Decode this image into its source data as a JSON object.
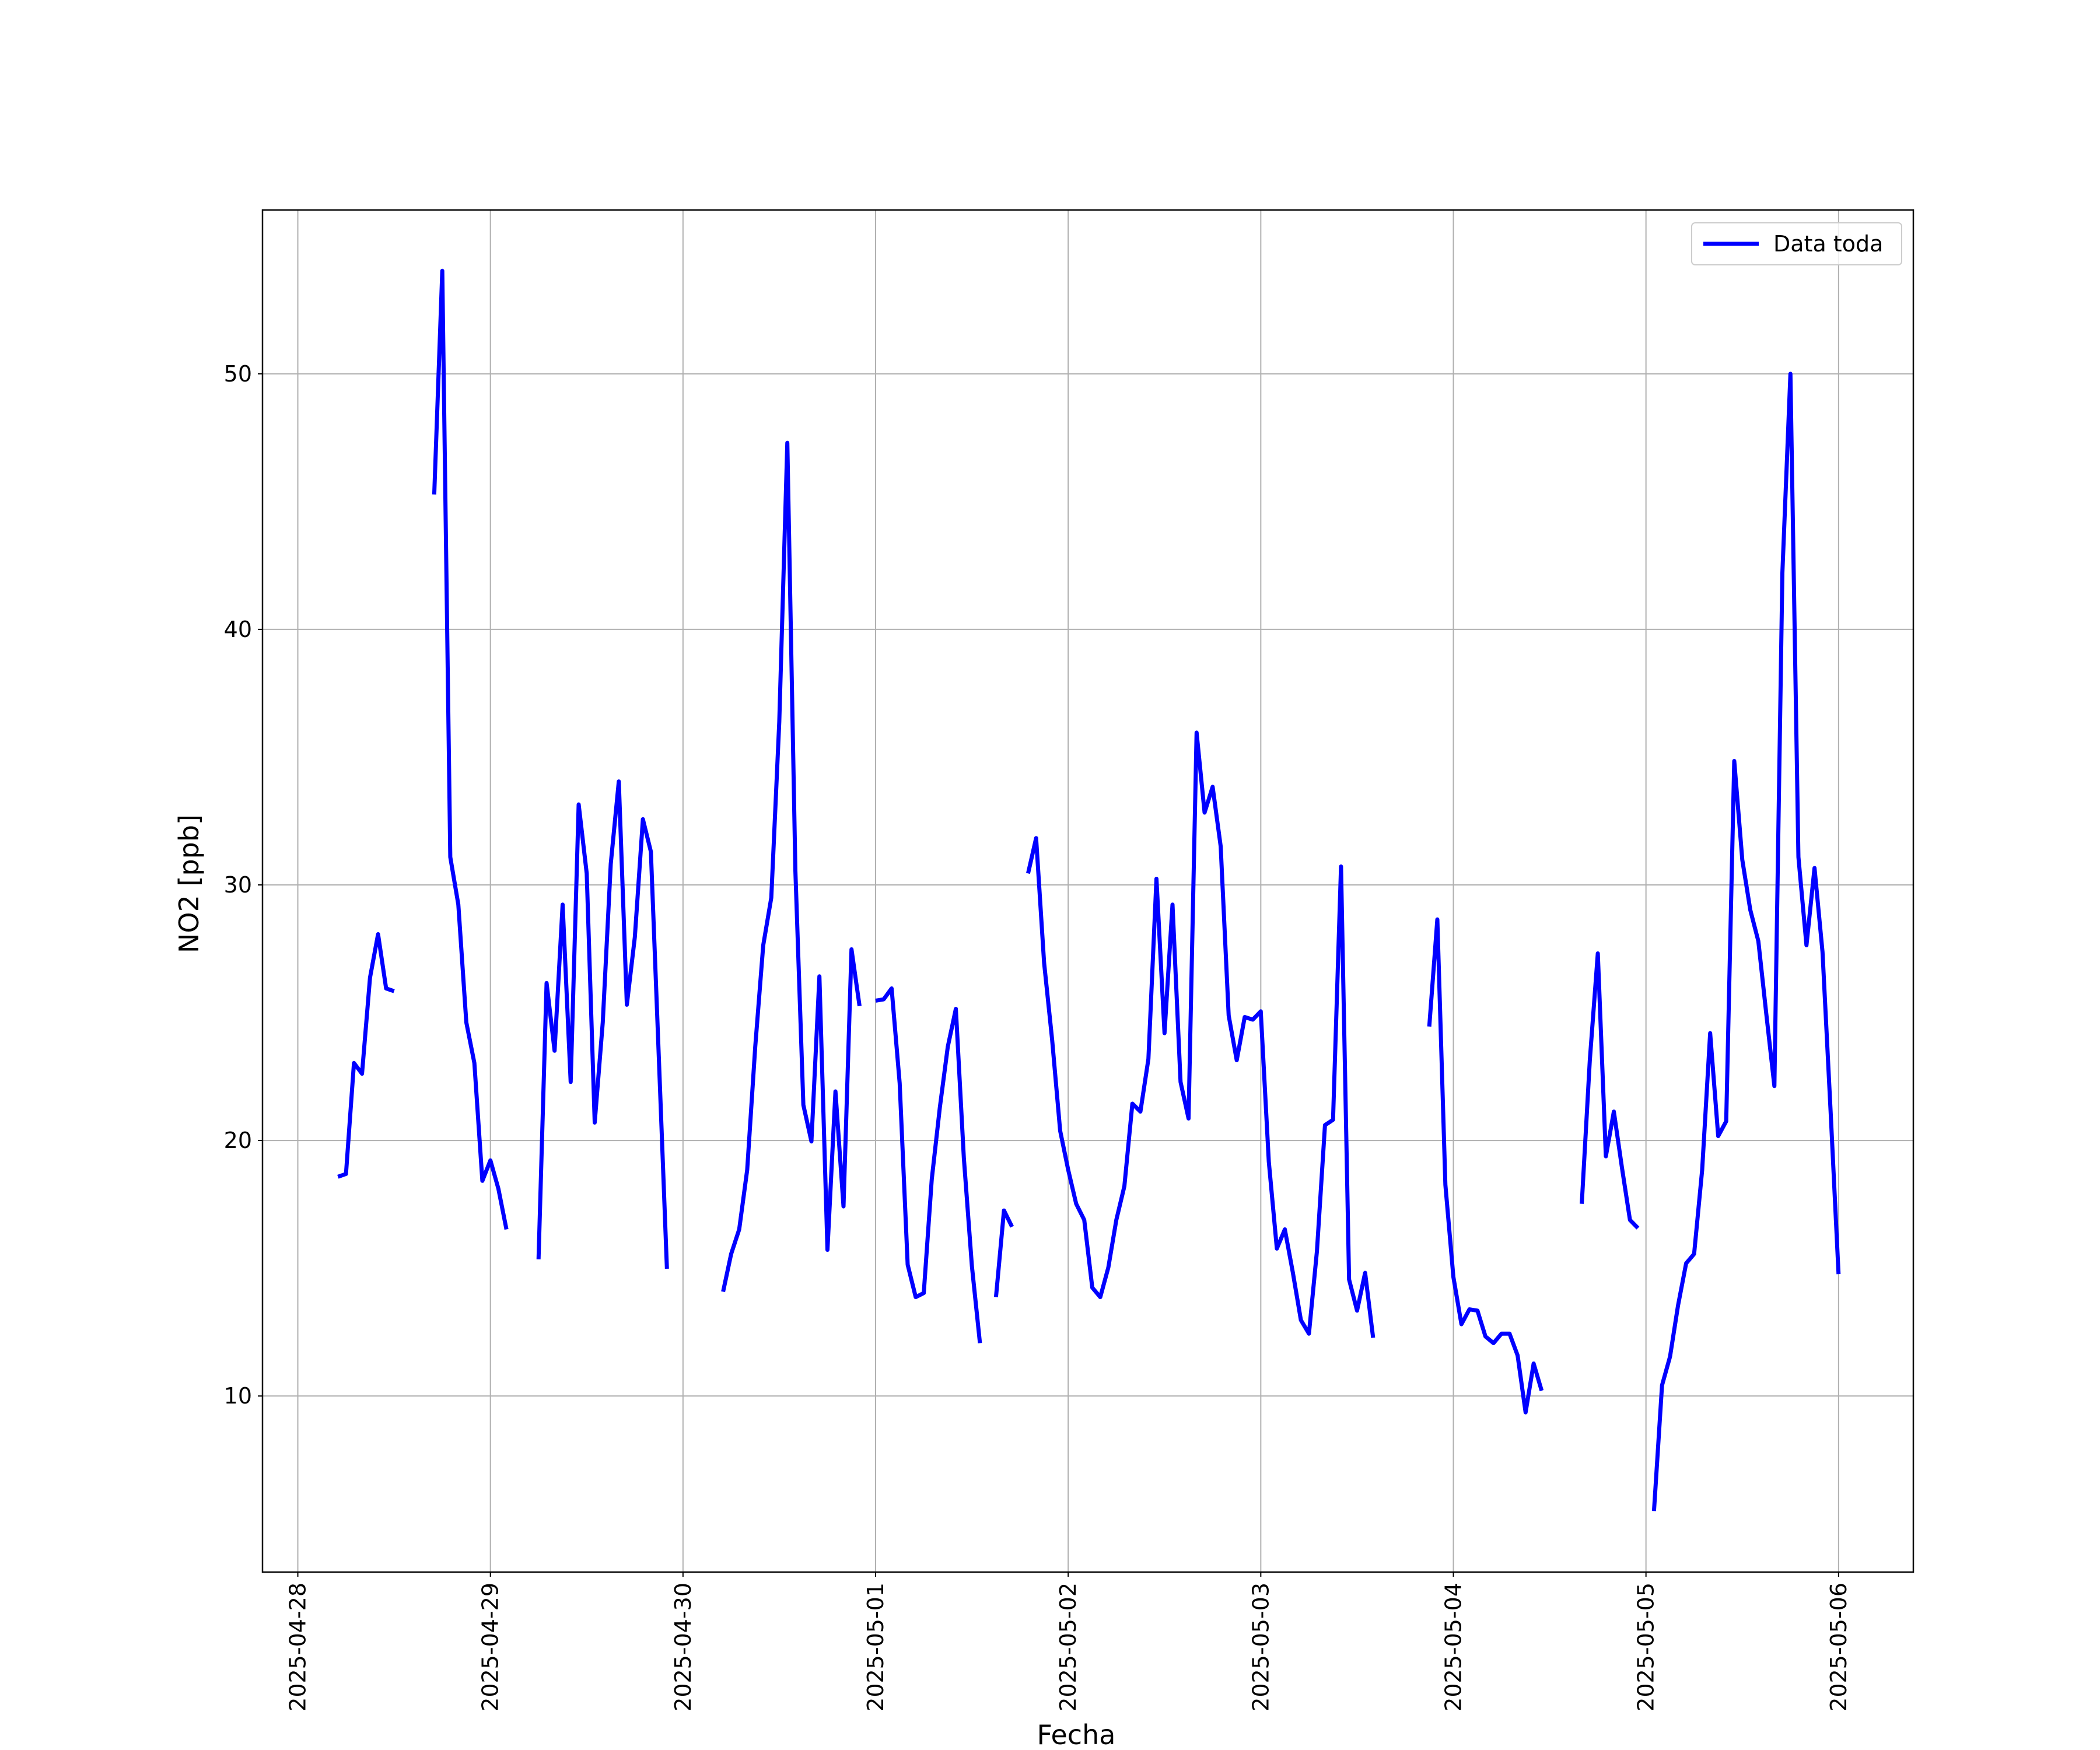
{
  "chart_data": {
    "type": "line",
    "xlabel": "Fecha",
    "ylabel": "NO2 [ppb]",
    "xlim": [
      "2025-04-27T19:36",
      "2025-05-06T09:19"
    ],
    "xticks": [
      "2025-04-28",
      "2025-04-29",
      "2025-04-30",
      "2025-05-01",
      "2025-05-02",
      "2025-05-03",
      "2025-05-04",
      "2025-05-05",
      "2025-05-06"
    ],
    "ylim": [
      3.11,
      56.41
    ],
    "yticks": [
      10,
      20,
      30,
      40,
      50
    ],
    "grid": true,
    "legend": "upper right",
    "x": [
      "2025-04-28T05:00",
      "2025-04-28T06:00",
      "2025-04-28T07:00",
      "2025-04-28T08:00",
      "2025-04-28T09:00",
      "2025-04-28T10:00",
      "2025-04-28T11:00",
      "2025-04-28T12:00",
      "2025-04-28T13:00",
      "2025-04-28T17:00",
      "2025-04-28T18:00",
      "2025-04-28T19:00",
      "2025-04-28T20:00",
      "2025-04-28T21:00",
      "2025-04-28T22:00",
      "2025-04-28T23:00",
      "2025-04-29T00:00",
      "2025-04-29T01:00",
      "2025-04-29T02:00",
      "2025-04-29T03:00",
      "2025-04-29T06:00",
      "2025-04-29T07:00",
      "2025-04-29T08:00",
      "2025-04-29T09:00",
      "2025-04-29T10:00",
      "2025-04-29T11:00",
      "2025-04-29T12:00",
      "2025-04-29T13:00",
      "2025-04-29T14:00",
      "2025-04-29T15:00",
      "2025-04-29T16:00",
      "2025-04-29T17:00",
      "2025-04-29T18:00",
      "2025-04-29T19:00",
      "2025-04-29T20:00",
      "2025-04-29T21:00",
      "2025-04-29T22:00",
      "2025-04-29T23:00",
      "2025-04-30T05:00",
      "2025-04-30T06:00",
      "2025-04-30T07:00",
      "2025-04-30T08:00",
      "2025-04-30T09:00",
      "2025-04-30T10:00",
      "2025-04-30T11:00",
      "2025-04-30T12:00",
      "2025-04-30T13:00",
      "2025-04-30T14:00",
      "2025-04-30T15:00",
      "2025-04-30T16:00",
      "2025-04-30T17:00",
      "2025-04-30T18:00",
      "2025-04-30T19:00",
      "2025-04-30T20:00",
      "2025-04-30T21:00",
      "2025-04-30T22:00",
      "2025-04-30T23:00",
      "2025-05-01T00:00",
      "2025-05-01T01:00",
      "2025-05-01T02:00",
      "2025-05-01T03:00",
      "2025-05-01T04:00",
      "2025-05-01T05:00",
      "2025-05-01T06:00",
      "2025-05-01T07:00",
      "2025-05-01T08:00",
      "2025-05-01T09:00",
      "2025-05-01T10:00",
      "2025-05-01T11:00",
      "2025-05-01T12:00",
      "2025-05-01T13:00",
      "2025-05-01T14:00",
      "2025-05-01T15:00",
      "2025-05-01T16:00",
      "2025-05-01T17:00",
      "2025-05-01T18:00",
      "2025-05-01T19:00",
      "2025-05-01T20:00",
      "2025-05-01T21:00",
      "2025-05-01T22:00",
      "2025-05-01T23:00",
      "2025-05-02T00:00",
      "2025-05-02T01:00",
      "2025-05-02T02:00",
      "2025-05-02T03:00",
      "2025-05-02T04:00",
      "2025-05-02T05:00",
      "2025-05-02T06:00",
      "2025-05-02T07:00",
      "2025-05-02T08:00",
      "2025-05-02T09:00",
      "2025-05-02T10:00",
      "2025-05-02T11:00",
      "2025-05-02T12:00",
      "2025-05-02T13:00",
      "2025-05-02T14:00",
      "2025-05-02T15:00",
      "2025-05-02T16:00",
      "2025-05-02T17:00",
      "2025-05-02T18:00",
      "2025-05-02T19:00",
      "2025-05-02T20:00",
      "2025-05-02T21:00",
      "2025-05-02T22:00",
      "2025-05-02T23:00",
      "2025-05-03T00:00",
      "2025-05-03T01:00",
      "2025-05-03T02:00",
      "2025-05-03T03:00",
      "2025-05-03T04:00",
      "2025-05-03T05:00",
      "2025-05-03T06:00",
      "2025-05-03T07:00",
      "2025-05-03T08:00",
      "2025-05-03T09:00",
      "2025-05-03T10:00",
      "2025-05-03T11:00",
      "2025-05-03T12:00",
      "2025-05-03T13:00",
      "2025-05-03T14:00",
      "2025-05-03T15:00",
      "2025-05-03T21:00",
      "2025-05-03T22:00",
      "2025-05-03T23:00",
      "2025-05-04T00:00",
      "2025-05-04T01:00",
      "2025-05-04T02:00",
      "2025-05-04T03:00",
      "2025-05-04T04:00",
      "2025-05-04T05:00",
      "2025-05-04T06:00",
      "2025-05-04T07:00",
      "2025-05-04T08:00",
      "2025-05-04T09:00",
      "2025-05-04T10:00",
      "2025-05-04T11:00",
      "2025-05-04T12:00",
      "2025-05-04T16:00",
      "2025-05-04T17:00",
      "2025-05-04T18:00",
      "2025-05-04T19:00",
      "2025-05-04T20:00",
      "2025-05-04T21:00",
      "2025-05-04T22:00",
      "2025-05-04T23:00",
      "2025-05-05T00:00",
      "2025-05-05T01:00",
      "2025-05-05T02:00",
      "2025-05-05T03:00",
      "2025-05-05T04:00",
      "2025-05-05T05:00",
      "2025-05-05T06:00",
      "2025-05-05T07:00",
      "2025-05-05T08:00",
      "2025-05-05T09:00",
      "2025-05-05T10:00",
      "2025-05-05T11:00",
      "2025-05-05T12:00",
      "2025-05-05T13:00",
      "2025-05-05T14:00",
      "2025-05-05T15:00",
      "2025-05-05T16:00",
      "2025-05-05T17:00",
      "2025-05-05T18:00",
      "2025-05-05T19:00",
      "2025-05-05T20:00",
      "2025-05-05T21:00",
      "2025-05-05T22:00",
      "2025-05-05T23:00",
      "2025-05-06T00:00"
    ],
    "series": [
      {
        "name": "Data toda",
        "color": "#0000ff",
        "values": [
          18.58,
          18.69,
          23.03,
          22.61,
          26.37,
          28.07,
          25.95,
          25.84,
          null,
          45.28,
          54.03,
          31.09,
          29.23,
          24.62,
          23.03,
          18.42,
          19.22,
          18.11,
          16.52,
          null,
          15.35,
          26.16,
          23.51,
          29.23,
          22.29,
          33.15,
          30.45,
          20.7,
          24.62,
          30.82,
          34.05,
          25.31,
          27.96,
          32.57,
          31.3,
          23.14,
          14.98,
          null,
          14.08,
          15.56,
          16.52,
          18.85,
          23.67,
          27.64,
          29.5,
          36.38,
          47.3,
          30.56,
          21.39,
          19.96,
          26.42,
          15.72,
          21.92,
          17.42,
          27.48,
          25.26,
          null,
          25.47,
          25.52,
          25.95,
          22.24,
          15.14,
          13.87,
          14.03,
          18.48,
          21.28,
          23.67,
          25.15,
          19.32,
          15.09,
          12.07,
          null,
          13.87,
          17.26,
          16.62,
          null,
          30.45,
          31.83,
          26.95,
          23.93,
          20.38,
          18.85,
          17.52,
          16.89,
          14.24,
          13.87,
          15.03,
          16.89,
          18.21,
          21.44,
          21.13,
          23.19,
          30.24,
          24.2,
          29.23,
          22.29,
          20.86,
          35.96,
          32.83,
          33.84,
          31.51,
          24.89,
          23.14,
          24.83,
          24.73,
          25.05,
          19.17,
          15.77,
          16.52,
          14.82,
          12.97,
          12.44,
          15.67,
          20.6,
          20.81,
          30.72,
          14.56,
          13.34,
          14.82,
          12.28,
          null,
          24.46,
          28.65,
          18.26,
          14.66,
          12.81,
          13.39,
          13.34,
          12.33,
          12.07,
          12.44,
          12.44,
          11.59,
          9.36,
          11.27,
          10.21,
          null,
          17.52,
          23.14,
          27.32,
          19.38,
          21.13,
          18.95,
          16.89,
          16.57,
          null,
          5.5,
          10.42,
          11.54,
          13.55,
          15.19,
          15.56,
          18.85,
          24.2,
          20.17,
          20.75,
          34.85,
          30.98,
          29.02,
          27.8,
          24.94,
          22.13,
          42.21,
          50.0,
          31.09,
          27.64,
          30.66,
          27.38,
          21.18,
          14.77
        ]
      }
    ]
  }
}
